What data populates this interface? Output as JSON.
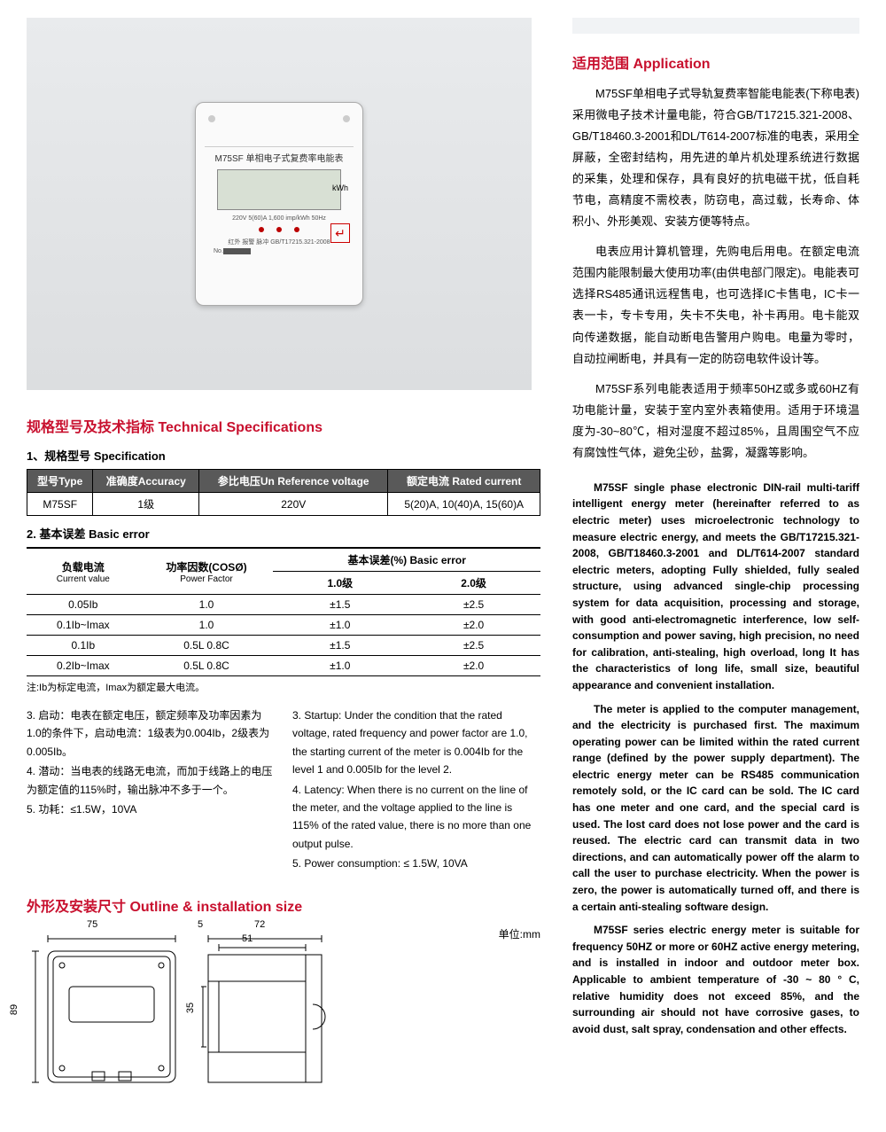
{
  "product": {
    "model_label": "M75SF 单相电子式复费率电能表",
    "lcd_unit": "kWh",
    "row1": "220V    5(60)A    1,600 imp/kWh    50Hz",
    "row2": "红外    报警    脉冲    GB/T17215.321-2008",
    "serial_prefix": "No."
  },
  "sections": {
    "spec_title": "规格型号及技术指标  Technical Specifications",
    "spec_sub1": "1、规格型号 Specification",
    "spec_sub2": "2. 基本误差  Basic error",
    "error_note": "注:Ib为标定电流，Imax为额定最大电流。",
    "outline_title": "外形及安装尺寸 Outline & installation size",
    "unit": "单位:mm",
    "app_title": "适用范围 Application"
  },
  "spec_table": {
    "headers": [
      "型号Type",
      "准确度Accuracy",
      "参比电压Un Reference voltage",
      "额定电流 Rated current"
    ],
    "row": [
      "M75SF",
      "1级",
      "220V",
      "5(20)A, 10(40)A, 15(60)A"
    ]
  },
  "error_table": {
    "h_current": "负载电流",
    "h_current_en": "Current value",
    "h_pf": "功率因数(COSØ)",
    "h_pf_en": "Power Factor",
    "h_err": "基本误差(%) Basic error",
    "h_l1": "1.0级",
    "h_l2": "2.0级",
    "rows": [
      [
        "0.05Ib",
        "1.0",
        "±1.5",
        "±2.5"
      ],
      [
        "0.1Ib~Imax",
        "1.0",
        "±1.0",
        "±2.0"
      ],
      [
        "0.1Ib",
        "0.5L 0.8C",
        "±1.5",
        "±2.5"
      ],
      [
        "0.2Ib~Imax",
        "0.5L 0.8C",
        "±1.0",
        "±2.0"
      ]
    ]
  },
  "notes_cn": [
    "3. 启动：电表在额定电压，额定频率及功率因素为1.0的条件下，启动电流：1级表为0.004Ib，2级表为0.005Ib。",
    "4. 潜动：当电表的线路无电流，而加于线路上的电压为额定值的115%时，输出脉冲不多于一个。",
    "5. 功耗：≤1.5W，10VA"
  ],
  "notes_en": [
    "3. Startup: Under the condition that the rated voltage, rated frequency and power factor are 1.0, the starting current of the meter is 0.004Ib for the level 1 and 0.005Ib for the level 2.",
    "4. Latency: When there is no current on the line of the meter, and the voltage applied to the line is 115% of the rated value, there is no more than one output pulse.",
    "5. Power consumption: ≤ 1.5W, 10VA"
  ],
  "dims": {
    "w1": "75",
    "w2": "72",
    "w3": "51",
    "w4": "5",
    "h1": "89",
    "h2": "35"
  },
  "app_cn": [
    "M75SF单相电子式导轨复费率智能电能表(下称电表)采用微电子技术计量电能，符合GB/T17215.321-2008、 GB/T18460.3-2001和DL/T614-2007标准的电表，采用全屏蔽，全密封结构，用先进的单片机处理系统进行数据的采集，处理和保存，具有良好的抗电磁干扰，低自耗节电，高精度不需校表，防窃电，高过载，长寿命、体积小、外形美观、安装方便等特点。",
    "电表应用计算机管理，先购电后用电。在额定电流范围内能限制最大使用功率(由供电部门限定)。电能表可选择RS485通讯远程售电，也可选择IC卡售电，IC卡一表一卡，专卡专用，失卡不失电，补卡再用。电卡能双向传递数据，能自动断电告警用户购电。电量为零时，自动拉闸断电，并具有一定的防窃电软件设计等。",
    "M75SF系列电能表适用于频率50HZ或多或60HZ有功电能计量，安装于室内室外表箱使用。适用于环境温度为-30~80℃，相对湿度不超过85%，且周围空气不应有腐蚀性气体，避免尘砂，盐雾，凝露等影响。"
  ],
  "app_en": [
    "M75SF single phase electronic DIN-rail multi-tariff intelligent energy meter (hereinafter referred to as electric meter) uses microelectronic technology to measure electric energy, and meets the GB/T17215.321-2008, GB/T18460.3-2001 and DL/T614-2007 standard electric meters, adopting Fully shielded, fully sealed structure, using advanced single-chip processing system for data acquisition, processing and storage, with good anti-electromagnetic interference, low self-consumption and power saving, high precision, no need for calibration, anti-stealing, high overload, long It has the characteristics of long life, small size, beautiful appearance and convenient installation.",
    "The meter is applied to the computer management, and the electricity is purchased first. The maximum operating power can be limited within the rated current range (defined by the power supply department). The electric energy meter can be RS485 communication remotely sold, or the IC card can be sold. The IC card has one meter and one card, and the special card is used. The lost card does not lose power and the card is reused. The electric card can transmit data in two directions, and can automatically power off the alarm to call the user to purchase electricity. When the power is zero, the power is automatically turned off, and there is a certain anti-stealing software design.",
    "M75SF series electric energy meter is suitable for frequency 50HZ or more or 60HZ active energy metering, and is installed in indoor and outdoor meter box. Applicable to ambient temperature of -30 ~ 80 ° C, relative humidity does not exceed 85%, and the surrounding air should not have corrosive gases, to avoid dust, salt spray, condensation and other effects."
  ]
}
